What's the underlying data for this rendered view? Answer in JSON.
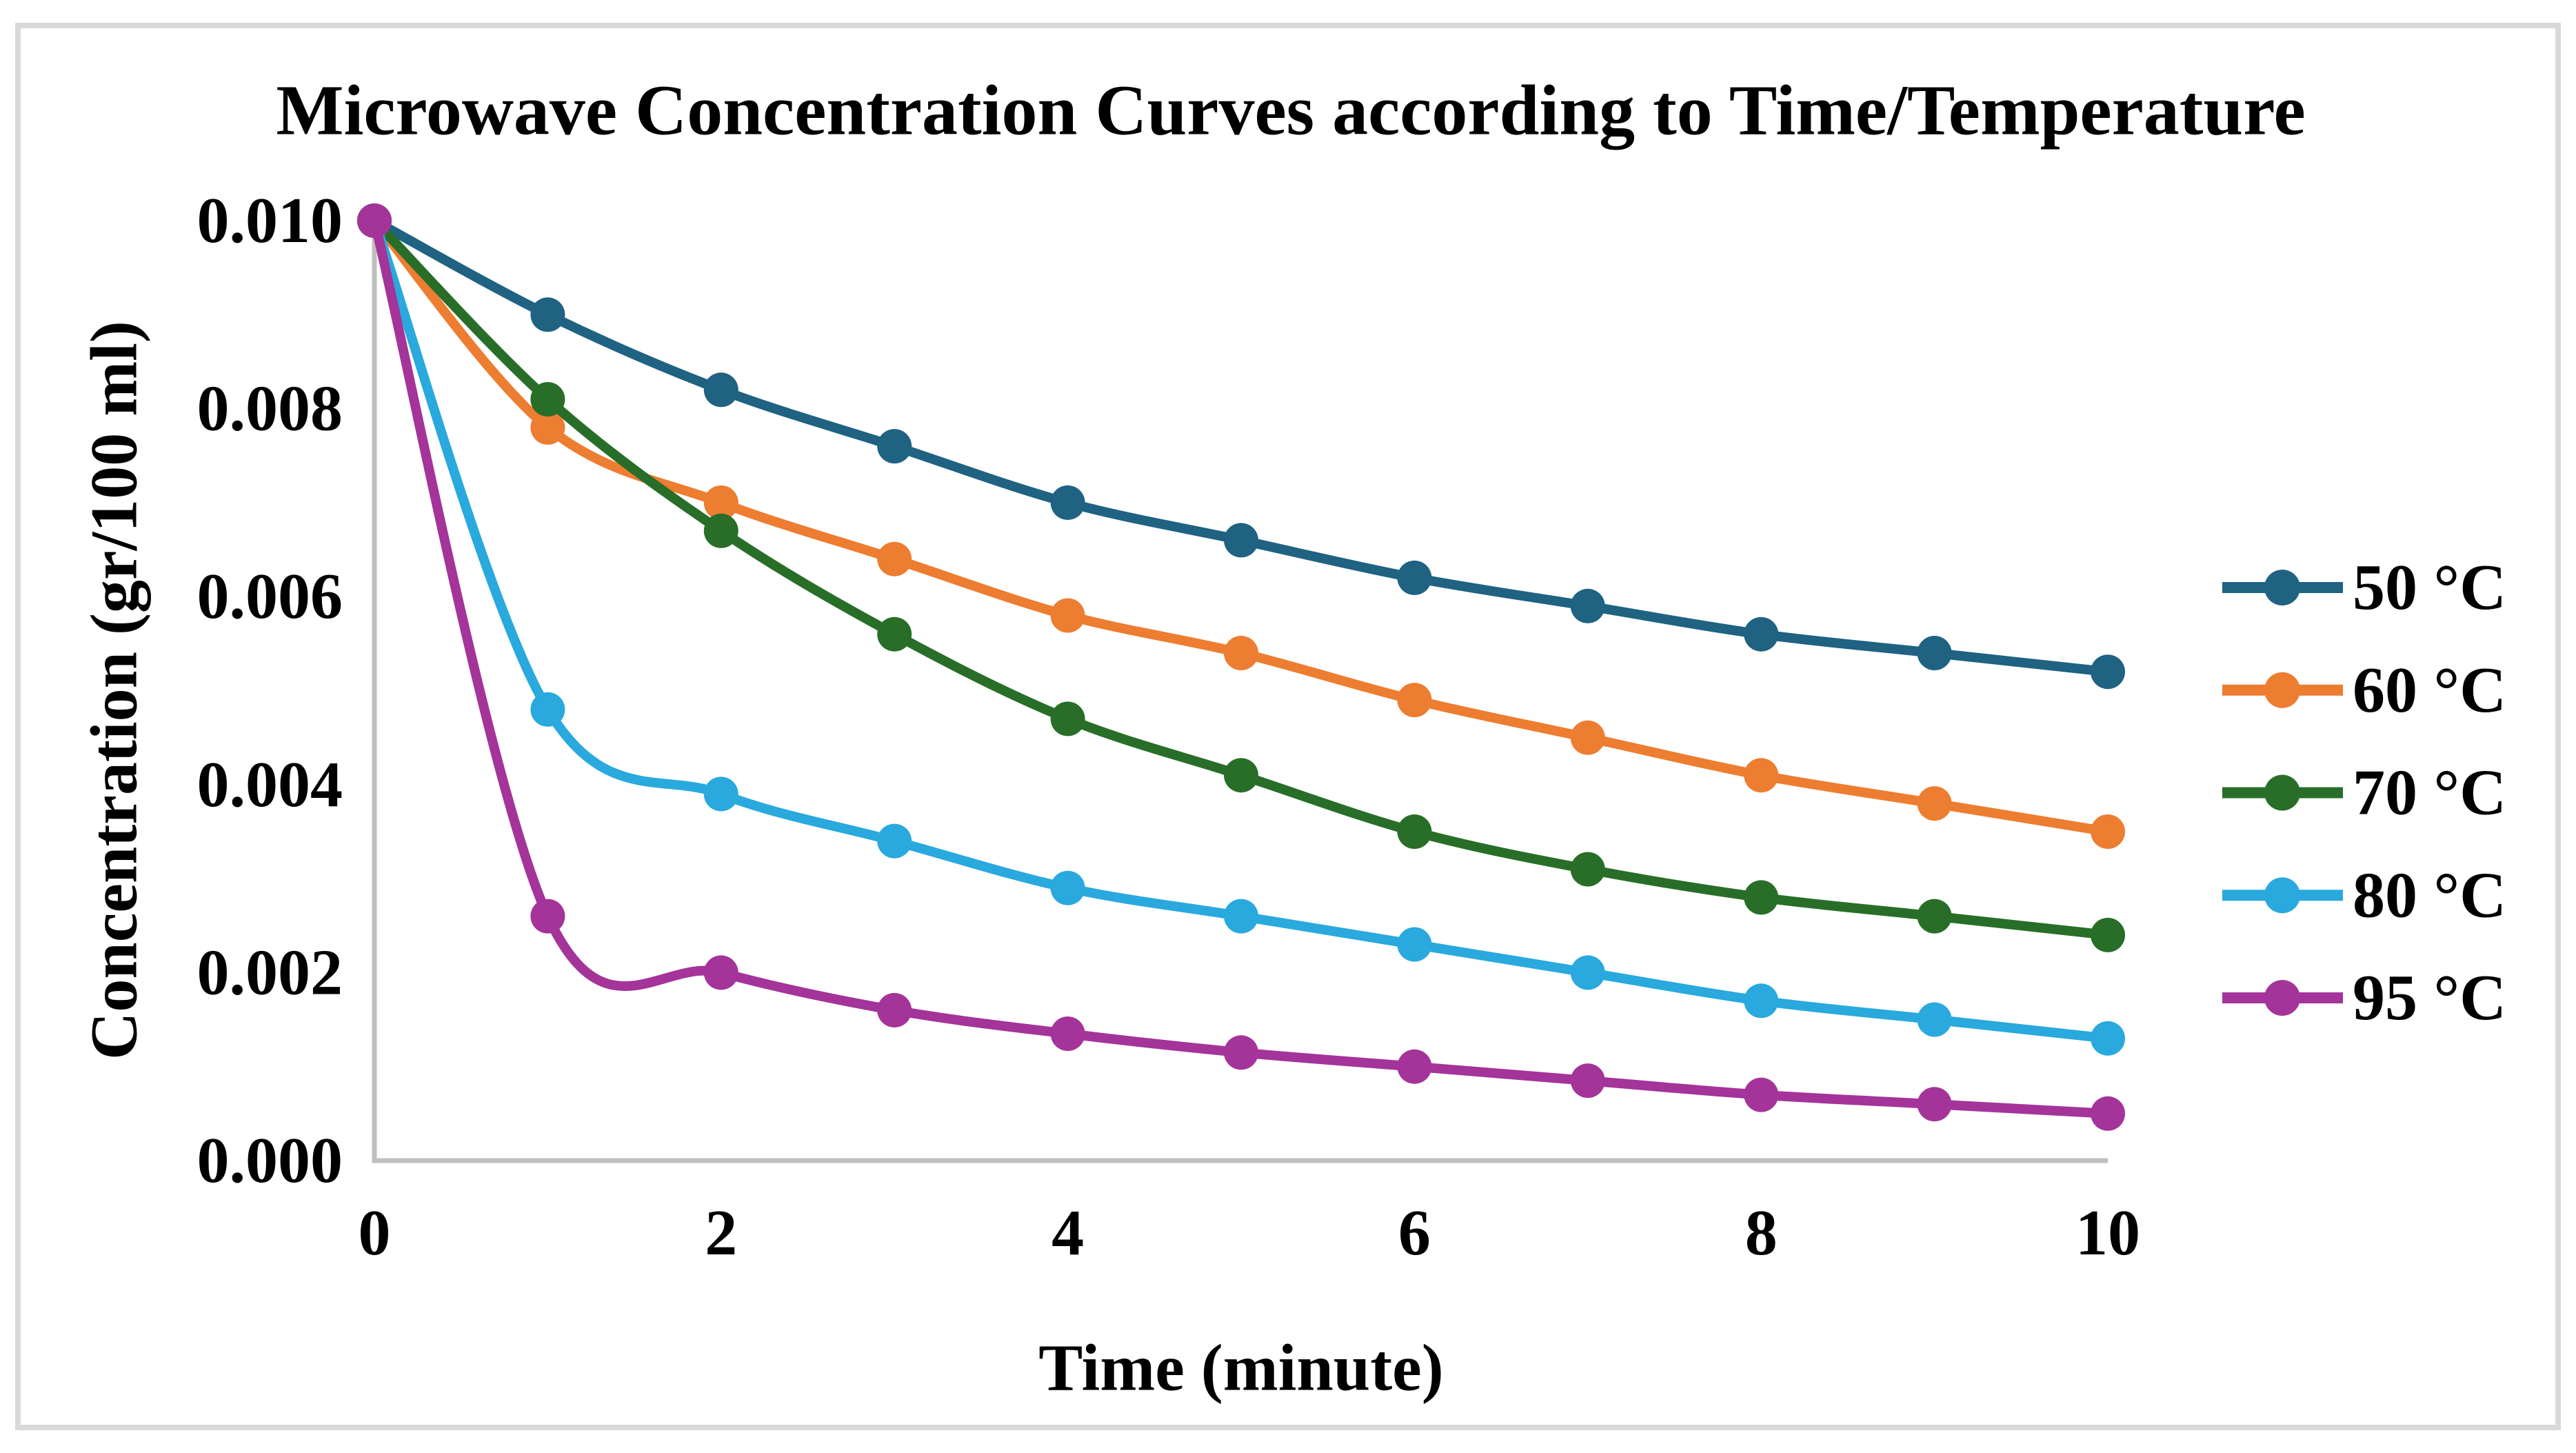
{
  "chart_data": {
    "type": "line",
    "title": "Microwave Concentration Curves according to Time/Temperature",
    "xlabel": "Time (minute)",
    "ylabel": "Concentration (gr/100 ml)",
    "x": [
      0,
      1,
      2,
      3,
      4,
      5,
      6,
      7,
      8,
      9,
      10
    ],
    "xlim": [
      0,
      10
    ],
    "ylim": [
      0.0,
      0.01
    ],
    "x_tick_labels": [
      "0",
      "2",
      "4",
      "6",
      "8",
      "10"
    ],
    "y_tick_labels": [
      "0.000",
      "0.002",
      "0.004",
      "0.006",
      "0.008",
      "0.010"
    ],
    "grid": false,
    "smooth": true,
    "marker": "circle",
    "legend_position": "right",
    "series": [
      {
        "name": "50 °C",
        "color": "#1f6282",
        "values": [
          0.01,
          0.009,
          0.0082,
          0.0076,
          0.007,
          0.0066,
          0.0062,
          0.0059,
          0.0056,
          0.0054,
          0.0052
        ]
      },
      {
        "name": "60 °C",
        "color": "#ed7d31",
        "values": [
          0.01,
          0.0078,
          0.007,
          0.0064,
          0.0058,
          0.0054,
          0.0049,
          0.0045,
          0.0041,
          0.0038,
          0.0035
        ]
      },
      {
        "name": "70 °C",
        "color": "#286e28",
        "values": [
          0.01,
          0.0081,
          0.0067,
          0.0056,
          0.0047,
          0.0041,
          0.0035,
          0.0031,
          0.0028,
          0.0026,
          0.0024
        ]
      },
      {
        "name": "80 °C",
        "color": "#29a9dd",
        "values": [
          0.01,
          0.0048,
          0.0039,
          0.0034,
          0.0029,
          0.0026,
          0.0023,
          0.002,
          0.0017,
          0.0015,
          0.0013
        ]
      },
      {
        "name": "95 °C",
        "color": "#a43499",
        "values": [
          0.01,
          0.0026,
          0.002,
          0.0016,
          0.00135,
          0.00115,
          0.001,
          0.00085,
          0.0007,
          0.0006,
          0.0005
        ]
      }
    ],
    "axis_color": "#bfbfbf",
    "border_color": "#d9d9d9",
    "text_color": "#000000",
    "background_color": "#ffffff"
  }
}
